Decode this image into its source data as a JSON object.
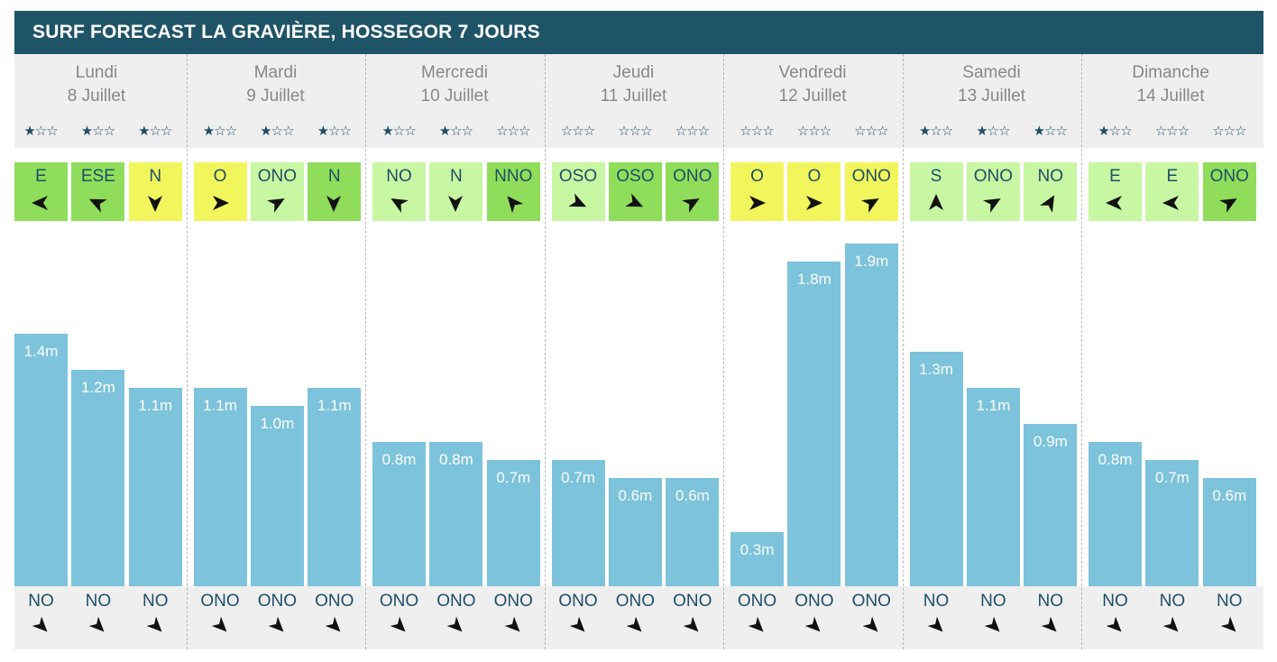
{
  "title": "SURF FORECAST LA GRAVIÈRE, HOSSEGOR 7 JOURS",
  "colors": {
    "header": "#1f5468",
    "bar": "#7cc3db",
    "wind_offshore": "#8fdd5a",
    "wind_light": "#c7f7a2",
    "wind_cross": "#f0f65c",
    "star": "#1f4e66"
  },
  "days": [
    {
      "name": "Lundi",
      "date": "8 Juillet",
      "ratings": [
        1,
        1,
        1
      ],
      "wind": [
        {
          "dir": "E",
          "deg": 270,
          "color": "#8fdd5a"
        },
        {
          "dir": "ESE",
          "deg": 295,
          "color": "#8fdd5a"
        },
        {
          "dir": "N",
          "deg": 180,
          "color": "#f0f65c"
        }
      ]
    },
    {
      "name": "Mardi",
      "date": "9 Juillet",
      "ratings": [
        1,
        1,
        1
      ],
      "wind": [
        {
          "dir": "O",
          "deg": 90,
          "color": "#f0f65c"
        },
        {
          "dir": "ONO",
          "deg": 60,
          "color": "#c7f7a2"
        },
        {
          "dir": "N",
          "deg": 180,
          "color": "#8fdd5a"
        }
      ]
    },
    {
      "name": "Mercredi",
      "date": "10 Juillet",
      "ratings": [
        1,
        1,
        0
      ],
      "wind": [
        {
          "dir": "NO",
          "deg": 300,
          "color": "#c7f7a2"
        },
        {
          "dir": "N",
          "deg": 180,
          "color": "#c7f7a2"
        },
        {
          "dir": "NNO",
          "deg": 320,
          "color": "#8fdd5a"
        }
      ]
    },
    {
      "name": "Jeudi",
      "date": "11 Juillet",
      "ratings": [
        0,
        0,
        0
      ],
      "wind": [
        {
          "dir": "OSO",
          "deg": 115,
          "color": "#c7f7a2"
        },
        {
          "dir": "OSO",
          "deg": 115,
          "color": "#8fdd5a"
        },
        {
          "dir": "ONO",
          "deg": 60,
          "color": "#8fdd5a"
        }
      ]
    },
    {
      "name": "Vendredi",
      "date": "12 Juillet",
      "ratings": [
        0,
        0,
        0
      ],
      "wind": [
        {
          "dir": "O",
          "deg": 90,
          "color": "#f0f65c"
        },
        {
          "dir": "O",
          "deg": 90,
          "color": "#f0f65c"
        },
        {
          "dir": "ONO",
          "deg": 60,
          "color": "#f0f65c"
        }
      ]
    },
    {
      "name": "Samedi",
      "date": "13 Juillet",
      "ratings": [
        1,
        1,
        1
      ],
      "wind": [
        {
          "dir": "S",
          "deg": 0,
          "color": "#c7f7a2"
        },
        {
          "dir": "ONO",
          "deg": 60,
          "color": "#c7f7a2"
        },
        {
          "dir": "NO",
          "deg": 30,
          "color": "#c7f7a2"
        }
      ]
    },
    {
      "name": "Dimanche",
      "date": "14 Juillet",
      "ratings": [
        1,
        0,
        0
      ],
      "wind": [
        {
          "dir": "E",
          "deg": 270,
          "color": "#c7f7a2"
        },
        {
          "dir": "E",
          "deg": 270,
          "color": "#c7f7a2"
        },
        {
          "dir": "ONO",
          "deg": 60,
          "color": "#8fdd5a"
        }
      ]
    }
  ],
  "chart_data": {
    "type": "bar",
    "unit": "m",
    "categories": [
      "8 Juillet",
      "9 Juillet",
      "10 Juillet",
      "11 Juillet",
      "12 Juillet",
      "13 Juillet",
      "14 Juillet"
    ],
    "ylim": [
      0,
      2.0
    ],
    "series": [
      {
        "values": [
          1.4,
          1.2,
          1.1,
          1.1,
          1.0,
          1.1,
          0.8,
          0.8,
          0.7,
          0.7,
          0.6,
          0.6,
          0.3,
          1.8,
          1.9,
          1.3,
          1.1,
          0.9,
          0.8,
          0.7,
          0.6
        ]
      }
    ],
    "labels": [
      "1.4m",
      "1.2m",
      "1.1m",
      "1.1m",
      "1.0m",
      "1.1m",
      "0.8m",
      "0.8m",
      "0.7m",
      "0.7m",
      "0.6m",
      "0.6m",
      "0.3m",
      "1.8m",
      "1.9m",
      "1.3m",
      "1.1m",
      "0.9m",
      "0.8m",
      "0.7m",
      "0.6m"
    ],
    "swell_dir": [
      "NO",
      "NO",
      "NO",
      "ONO",
      "ONO",
      "ONO",
      "ONO",
      "ONO",
      "ONO",
      "ONO",
      "ONO",
      "ONO",
      "ONO",
      "ONO",
      "ONO",
      "NO",
      "NO",
      "NO",
      "NO",
      "NO",
      "NO"
    ]
  }
}
